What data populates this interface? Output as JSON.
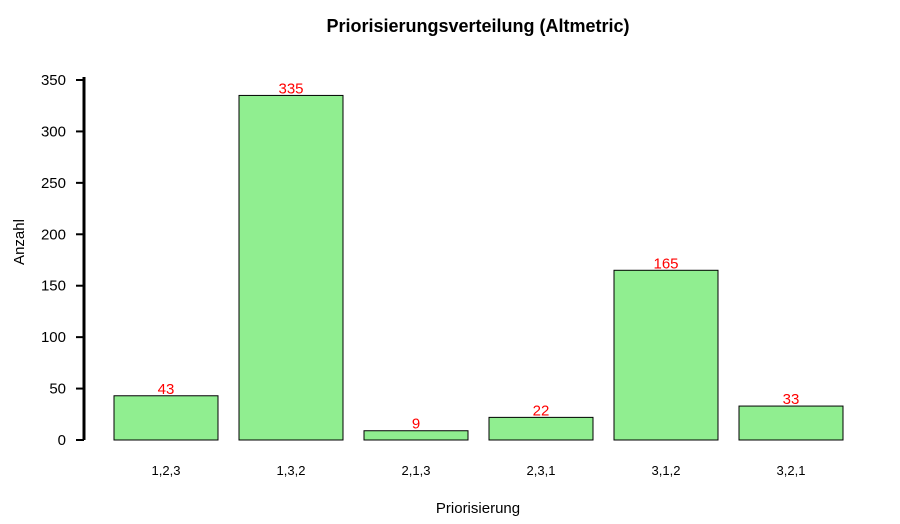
{
  "chart_data": {
    "type": "bar",
    "title": "Priorisierungsverteilung (Altmetric)",
    "xlabel": "Priorisierung",
    "ylabel": "Anzahl",
    "categories": [
      "1,2,3",
      "1,3,2",
      "2,1,3",
      "2,3,1",
      "3,1,2",
      "3,2,1"
    ],
    "values": [
      43,
      335,
      9,
      22,
      165,
      33
    ],
    "data_labels": [
      "43",
      "335",
      "9",
      "22",
      "165",
      "33"
    ],
    "ylim": [
      0,
      350
    ],
    "yticks": [
      "0",
      "50",
      "100",
      "150",
      "200",
      "250",
      "300",
      "350"
    ],
    "grid": false,
    "legend": "none",
    "colors": {
      "bar_fill": "#90ee90",
      "bar_stroke": "#000000",
      "data_label": "#ff0000"
    }
  }
}
